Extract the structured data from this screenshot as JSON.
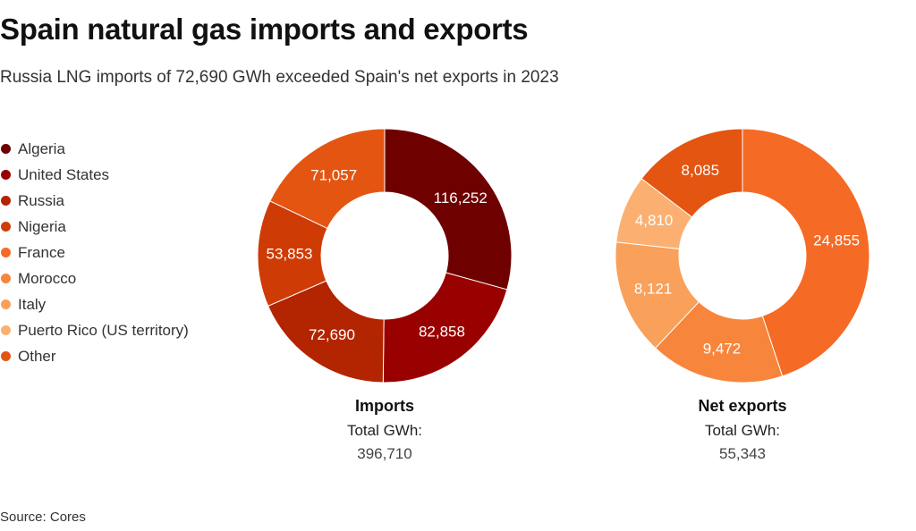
{
  "title": "Spain natural gas imports and exports",
  "subtitle": "Russia LNG imports of 72,690 GWh exceeded Spain's net exports in 2023",
  "source": "Source: Cores",
  "legend": [
    {
      "label": "Algeria",
      "color": "#6e0000"
    },
    {
      "label": "United States",
      "color": "#990000"
    },
    {
      "label": "Russia",
      "color": "#b32400"
    },
    {
      "label": "Nigeria",
      "color": "#cf3b04"
    },
    {
      "label": "France",
      "color": "#f56a24"
    },
    {
      "label": "Morocco",
      "color": "#f7853b"
    },
    {
      "label": "Italy",
      "color": "#f9a05a"
    },
    {
      "label": "Puerto Rico (US territory)",
      "color": "#fbb071"
    },
    {
      "label": "Other",
      "color": "#e35510"
    }
  ],
  "chart_data": [
    {
      "type": "pie",
      "name": "Imports",
      "total_label": "Total GWh:",
      "total_value": "396,710",
      "slices": [
        {
          "label": "Algeria",
          "value": 116252,
          "display": "116,252",
          "color": "#6e0000"
        },
        {
          "label": "United States",
          "value": 82858,
          "display": "82,858",
          "color": "#990000"
        },
        {
          "label": "Russia",
          "value": 72690,
          "display": "72,690",
          "color": "#b32400"
        },
        {
          "label": "Nigeria",
          "value": 53853,
          "display": "53,853",
          "color": "#cf3b04"
        },
        {
          "label": "Other",
          "value": 71057,
          "display": "71,057",
          "color": "#e35510"
        }
      ]
    },
    {
      "type": "pie",
      "name": "Net exports",
      "total_label": "Total GWh:",
      "total_value": "55,343",
      "slices": [
        {
          "label": "France",
          "value": 24855,
          "display": "24,855",
          "color": "#f56a24"
        },
        {
          "label": "Morocco",
          "value": 9472,
          "display": "9,472",
          "color": "#f7853b"
        },
        {
          "label": "Italy",
          "value": 8121,
          "display": "8,121",
          "color": "#f9a05a"
        },
        {
          "label": "Puerto Rico (US territory)",
          "value": 4810,
          "display": "4,810",
          "color": "#fbb071"
        },
        {
          "label": "Other",
          "value": 8085,
          "display": "8,085",
          "color": "#e35510"
        }
      ]
    }
  ]
}
